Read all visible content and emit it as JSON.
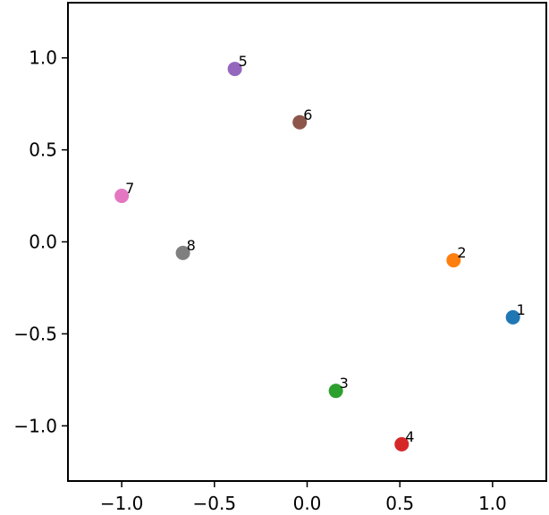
{
  "chart_data": {
    "type": "scatter",
    "title": "",
    "xlabel": "",
    "ylabel": "",
    "xlim": [
      -1.29,
      1.29
    ],
    "ylim": [
      -1.3,
      1.3
    ],
    "grid": false,
    "legend": null,
    "xticks": [
      -1.0,
      -0.5,
      0.0,
      0.5,
      1.0
    ],
    "yticks": [
      -1.0,
      -0.5,
      0.0,
      0.5,
      1.0
    ],
    "xtick_labels": [
      "−1.0",
      "−0.5",
      "0.0",
      "0.5",
      "1.0"
    ],
    "ytick_labels": [
      "−1.0",
      "−0.5",
      "0.0",
      "0.5",
      "1.0"
    ],
    "points": [
      {
        "label": "1",
        "x": 1.11,
        "y": -0.41,
        "color": "#1f77b4"
      },
      {
        "label": "2",
        "x": 0.79,
        "y": -0.1,
        "color": "#ff7f0e"
      },
      {
        "label": "3",
        "x": 0.155,
        "y": -0.81,
        "color": "#2ca02c"
      },
      {
        "label": "4",
        "x": 0.51,
        "y": -1.1,
        "color": "#d62728"
      },
      {
        "label": "5",
        "x": -0.39,
        "y": 0.94,
        "color": "#9467bd"
      },
      {
        "label": "6",
        "x": -0.04,
        "y": 0.65,
        "color": "#8c564b"
      },
      {
        "label": "7",
        "x": -1.0,
        "y": 0.25,
        "color": "#e377c2"
      },
      {
        "label": "8",
        "x": -0.67,
        "y": -0.06,
        "color": "#7f7f7f"
      }
    ]
  }
}
